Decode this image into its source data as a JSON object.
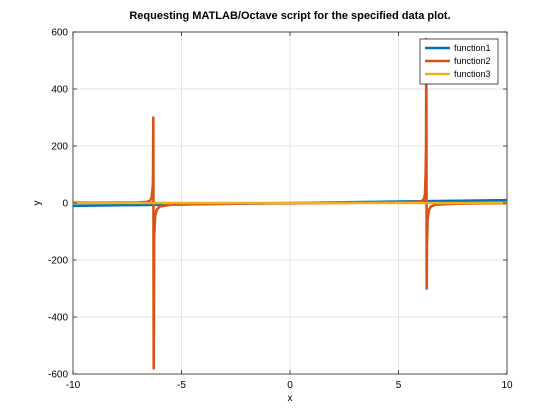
{
  "chart_data": {
    "type": "line",
    "title": "Requesting MATLAB/Octave script for the specified data plot.",
    "xlabel": "x",
    "ylabel": "y",
    "xlim": [
      -10,
      10
    ],
    "ylim": [
      -600,
      600
    ],
    "xticks": [
      -10,
      -5,
      0,
      5,
      10
    ],
    "yticks": [
      -600,
      -400,
      -200,
      0,
      200,
      400,
      600
    ],
    "grid": true,
    "legend_position": "top-right",
    "series": [
      {
        "name": "function1",
        "color": "#0072BD",
        "x": [
          -10,
          -5,
          0,
          5,
          10
        ],
        "y": [
          -10,
          -5,
          0,
          5,
          10
        ]
      },
      {
        "name": "function2",
        "color": "#D95319",
        "x": [
          -10,
          -9,
          -8,
          -7,
          -6.6,
          -6.45,
          -6.38,
          -6.32,
          -6.31,
          -6.3,
          -6.28,
          -6.26,
          -6.22,
          -6.15,
          -6.0,
          -5.5,
          -4,
          -2,
          0,
          2,
          4,
          5.5,
          6.0,
          6.15,
          6.22,
          6.25,
          6.27,
          6.28,
          6.3,
          6.31,
          6.34,
          6.4,
          6.5,
          6.7,
          7.5,
          8.5,
          10
        ],
        "y": [
          1.5,
          1.3,
          1.5,
          2.0,
          4.0,
          8.0,
          18.0,
          60.0,
          110.0,
          300.0,
          -580.0,
          -120.0,
          -50.0,
          -25.0,
          -12.0,
          -6.0,
          -3.0,
          -1.8,
          -1.0,
          0.0,
          1.5,
          3.0,
          5.0,
          10.0,
          30.0,
          100.0,
          200.0,
          575.0,
          -300.0,
          -150.0,
          -60.0,
          -25.0,
          -12.0,
          -6.0,
          -3.0,
          -1.5,
          -0.8
        ]
      },
      {
        "name": "function3",
        "color": "#EDB120",
        "x": [
          -10,
          -6.3,
          -6.3,
          -5,
          0,
          5,
          6.3,
          6.3,
          10
        ],
        "y": [
          0,
          0,
          0,
          0,
          0,
          0,
          0,
          0,
          0
        ]
      }
    ]
  }
}
